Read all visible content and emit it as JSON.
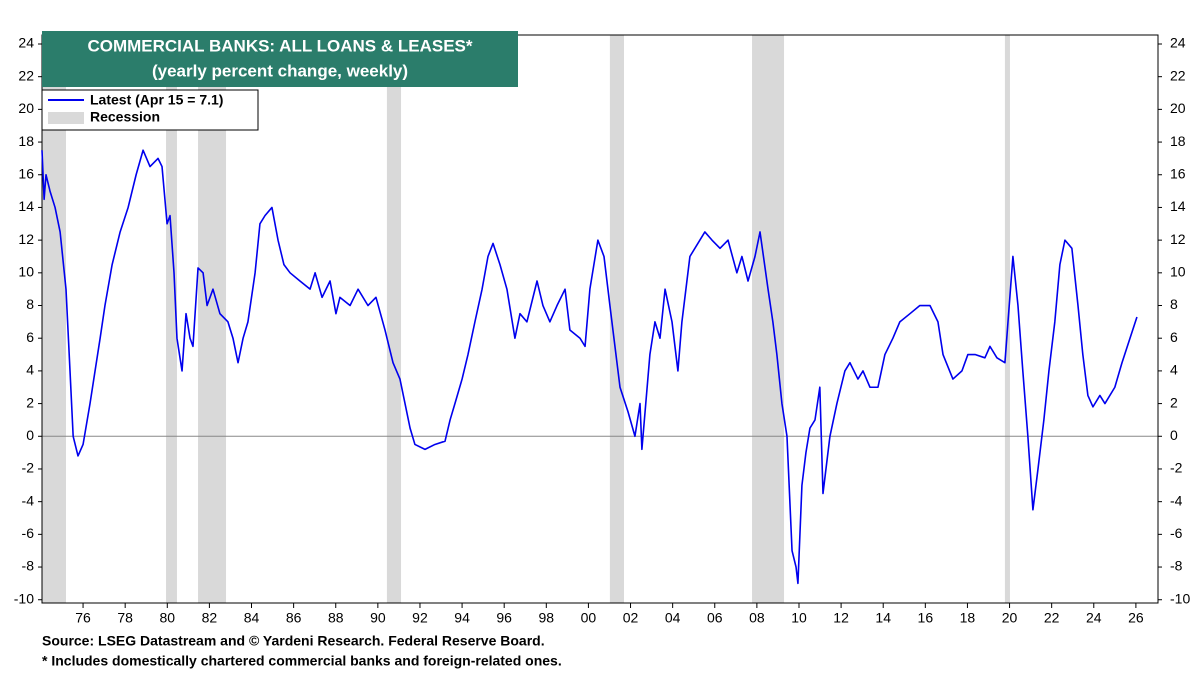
{
  "chart_data": {
    "type": "line",
    "title": "COMMERCIAL BANKS: ALL LOANS & LEASES*",
    "subtitle": "(yearly percent change, weekly)",
    "source": "Source: LSEG Datastream and © Yardeni Research. Federal Reserve Board.",
    "note": "* Includes domestically chartered commercial banks and foreign-related ones.",
    "recession_label": "Recession",
    "recession_color": "#d9d9d9",
    "recessions": [
      [
        1974.05,
        1975.19
      ],
      [
        1979.94,
        1980.46
      ],
      [
        1981.46,
        1982.79
      ],
      [
        1990.43,
        1991.1
      ],
      [
        2001.02,
        2001.69
      ],
      [
        2007.77,
        2009.29
      ],
      [
        2019.78,
        2020.02
      ]
    ],
    "x": [
      1974.05,
      1974.15,
      1974.24,
      1974.43,
      1974.67,
      1974.91,
      1975.19,
      1975.38,
      1975.53,
      1975.76,
      1976.0,
      1976.33,
      1976.57,
      1976.81,
      1977.04,
      1977.38,
      1977.76,
      1978.14,
      1978.52,
      1978.85,
      1979.18,
      1979.56,
      1979.75,
      1979.99,
      1980.13,
      1980.32,
      1980.46,
      1980.7,
      1980.89,
      1981.08,
      1981.22,
      1981.46,
      1981.7,
      1981.89,
      1982.17,
      1982.5,
      1982.88,
      1983.12,
      1983.36,
      1983.6,
      1983.83,
      1984.17,
      1984.4,
      1984.64,
      1984.97,
      1985.26,
      1985.54,
      1985.83,
      1986.3,
      1986.78,
      1987.02,
      1987.35,
      1987.73,
      1988.01,
      1988.2,
      1988.68,
      1989.06,
      1989.53,
      1989.91,
      1990.34,
      1990.72,
      1991.05,
      1991.29,
      1991.53,
      1991.76,
      1992.24,
      1992.71,
      1993.19,
      1993.43,
      1993.66,
      1994.0,
      1994.28,
      1994.61,
      1994.95,
      1995.23,
      1995.47,
      1995.8,
      1996.13,
      1996.51,
      1996.75,
      1997.08,
      1997.56,
      1997.84,
      1998.17,
      1998.51,
      1998.89,
      1999.12,
      1999.6,
      1999.84,
      2000.07,
      2000.45,
      2000.74,
      2001.02,
      2001.5,
      2001.88,
      2002.21,
      2002.45,
      2002.54,
      2002.92,
      2003.16,
      2003.4,
      2003.64,
      2003.97,
      2004.25,
      2004.44,
      2004.82,
      2005.53,
      2005.87,
      2006.25,
      2006.63,
      2007.05,
      2007.29,
      2007.58,
      2007.91,
      2008.15,
      2008.53,
      2008.76,
      2008.95,
      2009.19,
      2009.43,
      2009.67,
      2009.86,
      2009.95,
      2010.14,
      2010.33,
      2010.52,
      2010.76,
      2010.99,
      2011.14,
      2011.47,
      2011.8,
      2012.18,
      2012.42,
      2012.8,
      2013.04,
      2013.37,
      2013.75,
      2014.08,
      2014.46,
      2014.79,
      2015.27,
      2015.74,
      2016.22,
      2016.6,
      2016.84,
      2017.31,
      2017.74,
      2018.02,
      2018.36,
      2018.83,
      2019.07,
      2019.4,
      2019.78,
      2020.16,
      2020.4,
      2020.63,
      2020.87,
      2021.11,
      2021.35,
      2021.63,
      2021.87,
      2022.15,
      2022.39,
      2022.63,
      2022.96,
      2023.25,
      2023.48,
      2023.72,
      2023.96,
      2024.29,
      2024.53,
      2025.0,
      2025.34,
      2025.72,
      2026.05
    ],
    "series": [
      {
        "name": "Latest (Apr 15 = 7.1)",
        "color": "#0000ee",
        "values": [
          17.5,
          14.5,
          16,
          15,
          14,
          12.5,
          9,
          4,
          0,
          -1.2,
          -0.5,
          2,
          4,
          6,
          8,
          10.5,
          12.5,
          14,
          16,
          17.5,
          16.5,
          17,
          16.5,
          13,
          13.5,
          10,
          6,
          4,
          7.5,
          6,
          5.5,
          10.3,
          10,
          8,
          9,
          7.5,
          7,
          6,
          4.5,
          6,
          7,
          10,
          13,
          13.5,
          14,
          12,
          10.5,
          10,
          9.5,
          9,
          10,
          8.5,
          9.5,
          7.5,
          8.5,
          8,
          9,
          8,
          8.5,
          6.5,
          4.5,
          3.5,
          2,
          0.5,
          -0.5,
          -0.8,
          -0.5,
          -0.3,
          1,
          2,
          3.5,
          5,
          7,
          9,
          11,
          11.8,
          10.5,
          9,
          6,
          7.5,
          7,
          9.5,
          8,
          7,
          8,
          9,
          6.5,
          6,
          5.5,
          9,
          12,
          11,
          8,
          3,
          1.5,
          0,
          2,
          -0.8,
          5,
          7,
          6,
          9,
          7,
          4,
          7,
          11,
          12.5,
          12,
          11.5,
          12,
          10,
          11,
          9.5,
          11,
          12.5,
          9,
          7,
          5,
          2,
          0,
          -7,
          -8,
          -9,
          -3,
          -1,
          0.5,
          1,
          3,
          -3.5,
          0,
          2,
          4,
          4.5,
          3.5,
          4,
          3,
          3,
          5,
          6,
          7,
          7.5,
          8,
          8,
          7,
          5,
          3.5,
          4,
          5,
          5,
          4.8,
          5.5,
          4.8,
          4.5,
          11,
          8,
          4,
          0,
          -4.5,
          -2,
          1,
          4,
          7,
          10.5,
          12,
          11.5,
          8,
          5,
          2.5,
          1.8,
          2.5,
          2,
          3,
          4.5,
          6,
          7.3
        ]
      }
    ],
    "xlim": [
      1974.05,
      2027.05
    ],
    "ylim": [
      -10.2,
      24.55
    ],
    "xticks": [
      {
        "value": 1976,
        "label": "76"
      },
      {
        "value": 1978,
        "label": "78"
      },
      {
        "value": 1980,
        "label": "80"
      },
      {
        "value": 1982,
        "label": "82"
      },
      {
        "value": 1984,
        "label": "84"
      },
      {
        "value": 1986,
        "label": "86"
      },
      {
        "value": 1988,
        "label": "88"
      },
      {
        "value": 1990,
        "label": "90"
      },
      {
        "value": 1992,
        "label": "92"
      },
      {
        "value": 1994,
        "label": "94"
      },
      {
        "value": 1996,
        "label": "96"
      },
      {
        "value": 1998,
        "label": "98"
      },
      {
        "value": 2000,
        "label": "00"
      },
      {
        "value": 2002,
        "label": "02"
      },
      {
        "value": 2004,
        "label": "04"
      },
      {
        "value": 2006,
        "label": "06"
      },
      {
        "value": 2008,
        "label": "08"
      },
      {
        "value": 2010,
        "label": "10"
      },
      {
        "value": 2012,
        "label": "12"
      },
      {
        "value": 2014,
        "label": "14"
      },
      {
        "value": 2016,
        "label": "16"
      },
      {
        "value": 2018,
        "label": "18"
      },
      {
        "value": 2020,
        "label": "20"
      },
      {
        "value": 2022,
        "label": "22"
      },
      {
        "value": 2024,
        "label": "24"
      },
      {
        "value": 2026,
        "label": "26"
      }
    ],
    "yticks": [
      -10,
      -8,
      -6,
      -4,
      -2,
      0,
      2,
      4,
      6,
      8,
      10,
      12,
      14,
      16,
      18,
      20,
      22,
      24
    ]
  }
}
